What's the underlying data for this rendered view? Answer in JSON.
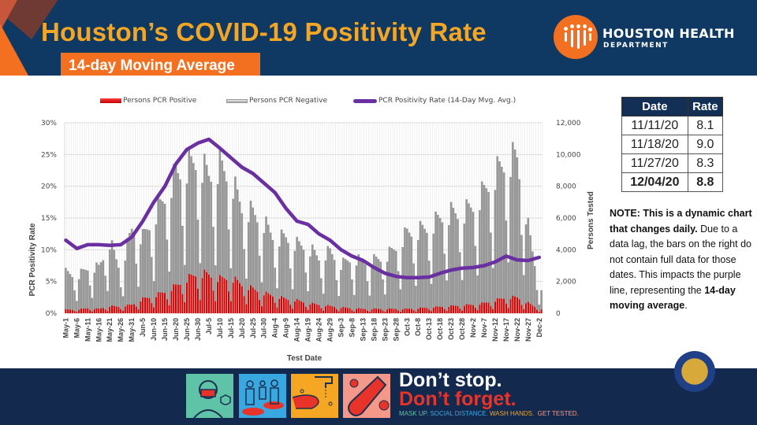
{
  "header": {
    "title": "Houston’s COVID-19 Positivity Rate",
    "subtitle": "14-day Moving Average",
    "org_name_line1": "HOUSTON HEALTH",
    "org_name_line2": "DEPARTMENT",
    "logo_icon": "houston-health-logo-icon"
  },
  "colors": {
    "header_bg": "#0f3863",
    "title": "#f5a623",
    "accent_orange": "#f37021",
    "positive_bar": "#d40000",
    "negative_bar": "#9a9a9a",
    "line": "#6a2fa0"
  },
  "legend": {
    "positive": "Persons PCR Positive",
    "negative": "Persons PCR Negative",
    "rate": "PCR Positivity Rate (14-Day Mvg. Avg.)"
  },
  "rate_table": {
    "headers": [
      "Date",
      "Rate"
    ],
    "rows": [
      {
        "date": "11/11/20",
        "rate": "8.1",
        "bold": false
      },
      {
        "date": "11/18/20",
        "rate": "9.0",
        "bold": false
      },
      {
        "date": "11/27/20",
        "rate": "8.3",
        "bold": false
      },
      {
        "date": "12/04/20",
        "rate": "8.8",
        "bold": true
      }
    ]
  },
  "note": {
    "bold_lead": "NOTE: This is a dynamic chart that changes daily.",
    "body": " Due to a data lag, the bars on the right do not contain full data for those dates. This impacts the purple line, representing the ",
    "bold_tail": "14-day moving average",
    "end": "."
  },
  "banner": {
    "line1": "Don’t stop.",
    "line2": "Don’t forget.",
    "tag1": "MASK UP.",
    "tag2": "SOCIAL DISTANCE.",
    "tag3": "WASH HANDS.",
    "tag4": "GET TESTED.",
    "icons": [
      "face-mask-icon",
      "social-distance-icon",
      "wash-hands-icon",
      "test-tube-icon"
    ]
  },
  "seal": {
    "icon": "city-of-houston-seal-icon"
  },
  "chart_data": {
    "type": "bar",
    "combo": "stacked bars (persons tested) + line (positivity rate, secondary axis)",
    "title": "",
    "xlabel": "Test Date",
    "ylabel_left": "PCR Positivity Rate",
    "ylabel_right": "Persons Tested",
    "ylim_left": [
      0,
      30
    ],
    "ylim_right": [
      0,
      12000
    ],
    "yticks_left": [
      "0%",
      "5%",
      "10%",
      "15%",
      "20%",
      "25%",
      "30%"
    ],
    "yticks_right": [
      "0",
      "2,000",
      "4,000",
      "6,000",
      "8,000",
      "10,000",
      "12,000"
    ],
    "grid": true,
    "legend_position": "top",
    "x_ticks": [
      "May-1",
      "May-6",
      "May-11",
      "May-16",
      "May-21",
      "May-26",
      "May-31",
      "Jun-5",
      "Jun-10",
      "Jun-15",
      "Jun-20",
      "Jun-25",
      "Jun-30",
      "Jul-5",
      "Jul-10",
      "Jul-15",
      "Jul-20",
      "Jul-25",
      "Jul-30",
      "Aug-4",
      "Aug-9",
      "Aug-14",
      "Aug-19",
      "Aug-24",
      "Aug-29",
      "Sep-3",
      "Sep-8",
      "Sep-13",
      "Sep-18",
      "Sep-23",
      "Sep-28",
      "Oct-3",
      "Oct-8",
      "Oct-13",
      "Oct-18",
      "Oct-23",
      "Oct-28",
      "Nov-2",
      "Nov-7",
      "Nov-12",
      "Nov-17",
      "Nov-22",
      "Nov-27",
      "Dec-2"
    ],
    "series": [
      {
        "name": "PCR Positivity Rate (14-Day Mvg. Avg.)",
        "axis": "left",
        "unit": "%",
        "x": [
          "May-1",
          "May-6",
          "May-11",
          "May-16",
          "May-21",
          "May-26",
          "May-31",
          "Jun-5",
          "Jun-10",
          "Jun-15",
          "Jun-20",
          "Jun-25",
          "Jun-30",
          "Jul-5",
          "Jul-10",
          "Jul-15",
          "Jul-20",
          "Jul-25",
          "Jul-30",
          "Aug-4",
          "Aug-9",
          "Aug-14",
          "Aug-19",
          "Aug-24",
          "Aug-29",
          "Sep-3",
          "Sep-8",
          "Sep-13",
          "Sep-18",
          "Sep-23",
          "Sep-28",
          "Oct-3",
          "Oct-8",
          "Oct-13",
          "Oct-18",
          "Oct-23",
          "Oct-28",
          "Nov-2",
          "Nov-7",
          "Nov-12",
          "Nov-17",
          "Nov-22",
          "Nov-27",
          "Dec-2"
        ],
        "values": [
          11.5,
          10.2,
          10.8,
          10.8,
          10.7,
          10.8,
          12.0,
          14.5,
          17.5,
          20.0,
          23.5,
          25.8,
          26.8,
          27.4,
          26.0,
          24.5,
          23.0,
          22.0,
          20.5,
          19.0,
          16.5,
          14.5,
          14.0,
          12.5,
          11.5,
          10.0,
          9.0,
          8.3,
          7.2,
          6.3,
          5.8,
          5.6,
          5.6,
          5.7,
          6.3,
          6.8,
          7.1,
          7.2,
          7.5,
          8.1,
          9.0,
          8.4,
          8.3,
          8.8
        ]
      },
      {
        "name": "Persons PCR Positive",
        "axis": "right",
        "unit": "persons",
        "x": [
          "May-1",
          "May-6",
          "May-11",
          "May-16",
          "May-21",
          "May-26",
          "May-31",
          "Jun-5",
          "Jun-10",
          "Jun-15",
          "Jun-20",
          "Jun-25",
          "Jun-30",
          "Jul-5",
          "Jul-10",
          "Jul-15",
          "Jul-20",
          "Jul-25",
          "Jul-30",
          "Aug-4",
          "Aug-9",
          "Aug-14",
          "Aug-19",
          "Aug-24",
          "Aug-29",
          "Sep-3",
          "Sep-8",
          "Sep-13",
          "Sep-18",
          "Sep-23",
          "Sep-28",
          "Oct-3",
          "Oct-8",
          "Oct-13",
          "Oct-18",
          "Oct-23",
          "Oct-28",
          "Nov-2",
          "Nov-7",
          "Nov-12",
          "Nov-17",
          "Nov-22",
          "Nov-27",
          "Dec-2"
        ],
        "values": [
          250,
          250,
          350,
          300,
          500,
          450,
          600,
          1000,
          1200,
          1500,
          1900,
          2400,
          2800,
          2700,
          2400,
          2500,
          2000,
          1700,
          1400,
          1200,
          1000,
          900,
          700,
          600,
          500,
          400,
          350,
          300,
          300,
          300,
          300,
          300,
          350,
          400,
          450,
          500,
          550,
          600,
          700,
          900,
          1100,
          1100,
          700,
          300
        ]
      },
      {
        "name": "Persons PCR Negative",
        "axis": "right",
        "unit": "persons",
        "x": [
          "May-1",
          "May-6",
          "May-11",
          "May-16",
          "May-21",
          "May-26",
          "May-31",
          "Jun-5",
          "Jun-10",
          "Jun-15",
          "Jun-20",
          "Jun-25",
          "Jun-30",
          "Jul-5",
          "Jul-10",
          "Jul-15",
          "Jul-20",
          "Jul-25",
          "Jul-30",
          "Aug-4",
          "Aug-9",
          "Aug-14",
          "Aug-19",
          "Aug-24",
          "Aug-29",
          "Sep-3",
          "Sep-8",
          "Sep-13",
          "Sep-18",
          "Sep-23",
          "Sep-28",
          "Oct-3",
          "Oct-8",
          "Oct-13",
          "Oct-18",
          "Oct-23",
          "Oct-28",
          "Nov-2",
          "Nov-7",
          "Nov-12",
          "Nov-17",
          "Nov-22",
          "Nov-27",
          "Dec-2"
        ],
        "values": [
          2600,
          2300,
          2800,
          2900,
          4500,
          2500,
          5300,
          4300,
          5500,
          6600,
          7800,
          7800,
          7900,
          6900,
          7900,
          6900,
          5400,
          5300,
          4900,
          4000,
          4300,
          3900,
          3900,
          3300,
          3800,
          3000,
          3500,
          3300,
          3400,
          3600,
          4300,
          5300,
          5400,
          5600,
          6200,
          6500,
          6400,
          6900,
          7800,
          8800,
          9500,
          9800,
          5300,
          1500
        ]
      }
    ]
  }
}
